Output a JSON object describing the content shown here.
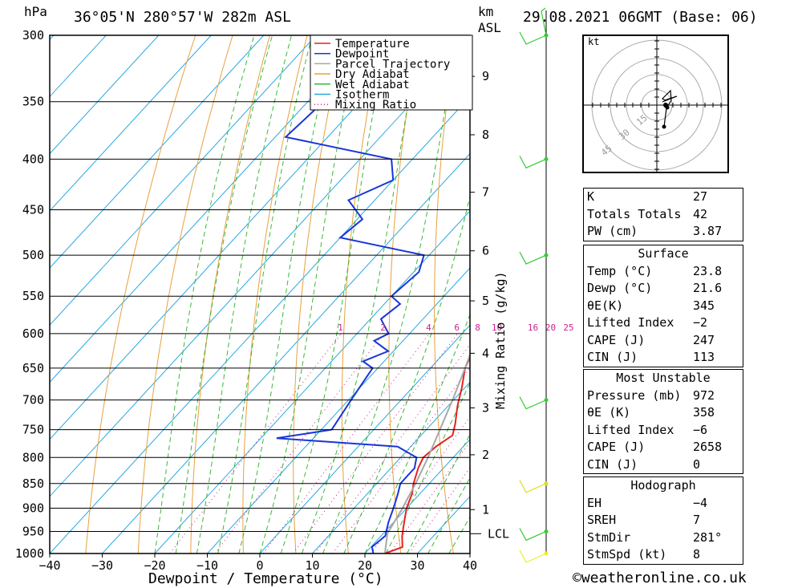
{
  "header": {
    "hpa_label": "hPa",
    "location": "36°05'N  280°57'W  282m  ASL",
    "km_label": "km",
    "asl_label": "ASL",
    "datetime": "29.08.2021  06GMT  (Base: 06)"
  },
  "chart_data": {
    "type": "line",
    "title": "36°05'N  280°57'W  282m  ASL",
    "xlabel": "Dewpoint / Temperature (°C)",
    "ylabel": "hPa",
    "xlim": [
      -40,
      40
    ],
    "ylim": [
      1000,
      300
    ],
    "y_scale": "log",
    "x_ticks": [
      "−40",
      "−30",
      "−20",
      "−10",
      "0",
      "10",
      "20",
      "30",
      "40"
    ],
    "y_ticks": [
      300,
      350,
      400,
      450,
      500,
      550,
      600,
      650,
      700,
      750,
      800,
      850,
      900,
      950,
      1000
    ],
    "km_ticks": [
      {
        "km": 1,
        "p": 903
      },
      {
        "km": 2,
        "p": 795
      },
      {
        "km": 3,
        "p": 713
      },
      {
        "km": 4,
        "p": 628
      },
      {
        "km": 5,
        "p": 556
      },
      {
        "km": 6,
        "p": 495
      },
      {
        "km": 7,
        "p": 432
      },
      {
        "km": 8,
        "p": 378
      },
      {
        "km": 9,
        "p": 330
      }
    ],
    "lcl": {
      "label": "LCL",
      "p": 955
    },
    "mixing_ratio_axis_label": "Mixing Ratio (g/kg)",
    "mixing_ratio_labels": [
      "1",
      "2",
      "4",
      "6",
      "8",
      "10",
      "16",
      "20",
      "25"
    ],
    "legend": [
      "Temperature",
      "Dewpoint",
      "Parcel Trajectory",
      "Dry Adiabat",
      "Wet Adiabat",
      "Isotherm",
      "Mixing Ratio"
    ],
    "legend_position": "top-right",
    "series": [
      {
        "name": "Temperature",
        "color": "#e8211f",
        "points": [
          [
            1000,
            23.8
          ],
          [
            985,
            26
          ],
          [
            960,
            24
          ],
          [
            930,
            22
          ],
          [
            900,
            20
          ],
          [
            870,
            18.5
          ],
          [
            850,
            17
          ],
          [
            820,
            15.2
          ],
          [
            800,
            14.3
          ],
          [
            780,
            14.8
          ],
          [
            760,
            16
          ],
          [
            740,
            14.5
          ],
          [
            710,
            11.8
          ],
          [
            680,
            9.4
          ],
          [
            650,
            6.6
          ],
          [
            620,
            4.8
          ],
          [
            600,
            3.6
          ],
          [
            575,
            1.3
          ],
          [
            550,
            -1.5
          ],
          [
            520,
            -4.4
          ],
          [
            500,
            -6.6
          ],
          [
            470,
            -10.1
          ],
          [
            450,
            -12.6
          ],
          [
            430,
            -16
          ],
          [
            415,
            -18.4
          ],
          [
            400,
            -20.5
          ],
          [
            380,
            -24.2
          ],
          [
            360,
            -28.3
          ],
          [
            340,
            -32
          ],
          [
            320,
            -35.8
          ],
          [
            300,
            -38
          ]
        ]
      },
      {
        "name": "Dewpoint",
        "color": "#1a35d9",
        "points": [
          [
            1000,
            21.6
          ],
          [
            985,
            20.2
          ],
          [
            960,
            20.8
          ],
          [
            930,
            19
          ],
          [
            900,
            17.5
          ],
          [
            870,
            15.8
          ],
          [
            850,
            14.5
          ],
          [
            820,
            14.5
          ],
          [
            800,
            13
          ],
          [
            780,
            7.5
          ],
          [
            765,
            -17
          ],
          [
            750,
            -8
          ],
          [
            700,
            -9.5
          ],
          [
            650,
            -11
          ],
          [
            640,
            -14
          ],
          [
            625,
            -11
          ],
          [
            610,
            -15.5
          ],
          [
            600,
            -14
          ],
          [
            580,
            -18
          ],
          [
            560,
            -17
          ],
          [
            550,
            -20
          ],
          [
            520,
            -19
          ],
          [
            500,
            -21
          ],
          [
            480,
            -40
          ],
          [
            460,
            -39
          ],
          [
            440,
            -45
          ],
          [
            420,
            -40
          ],
          [
            400,
            -44
          ],
          [
            380,
            -68
          ],
          [
            350,
            -67
          ],
          [
            320,
            -68
          ],
          [
            310,
            -68
          ],
          [
            300,
            -63
          ]
        ]
      },
      {
        "name": "Parcel Trajectory",
        "color": "#a8a8a8",
        "points": [
          [
            1000,
            23.8
          ],
          [
            955,
            20.8
          ],
          [
            900,
            19.2
          ],
          [
            850,
            17.4
          ],
          [
            800,
            15.2
          ],
          [
            750,
            12.6
          ],
          [
            700,
            9.8
          ],
          [
            650,
            6.6
          ],
          [
            600,
            3
          ],
          [
            550,
            -1.2
          ],
          [
            500,
            -6.2
          ],
          [
            450,
            -12.2
          ],
          [
            400,
            -19.6
          ],
          [
            370,
            -24.6
          ],
          [
            350,
            -29
          ]
        ]
      }
    ]
  },
  "hodograph": {
    "unit_label": "kt",
    "ring_labels": [
      "15",
      "30",
      "45"
    ]
  },
  "indices": [
    {
      "label": "K",
      "value": "27"
    },
    {
      "label": "Totals Totals",
      "value": "42"
    },
    {
      "label": "PW (cm)",
      "value": "3.87"
    }
  ],
  "surface": {
    "title": "Surface",
    "rows": [
      {
        "label": "Temp (°C)",
        "value": "23.8"
      },
      {
        "label": "Dewp (°C)",
        "value": "21.6"
      },
      {
        "label": "θE(K)",
        "value": "345"
      },
      {
        "label": "Lifted Index",
        "value": "−2"
      },
      {
        "label": "CAPE (J)",
        "value": "247"
      },
      {
        "label": "CIN (J)",
        "value": "113"
      }
    ]
  },
  "most_unstable": {
    "title": "Most Unstable",
    "rows": [
      {
        "label": "Pressure (mb)",
        "value": "972"
      },
      {
        "label": "θE (K)",
        "value": "358"
      },
      {
        "label": "Lifted Index",
        "value": "−6"
      },
      {
        "label": "CAPE (J)",
        "value": "2658"
      },
      {
        "label": "CIN (J)",
        "value": "0"
      }
    ]
  },
  "hodo_table": {
    "title": "Hodograph",
    "rows": [
      {
        "label": "EH",
        "value": "−4"
      },
      {
        "label": "SREH",
        "value": "7"
      },
      {
        "label": "StmDir",
        "value": "281°"
      },
      {
        "label": "StmSpd (kt)",
        "value": "8"
      }
    ]
  },
  "footer": "©weatheronline.co.uk"
}
